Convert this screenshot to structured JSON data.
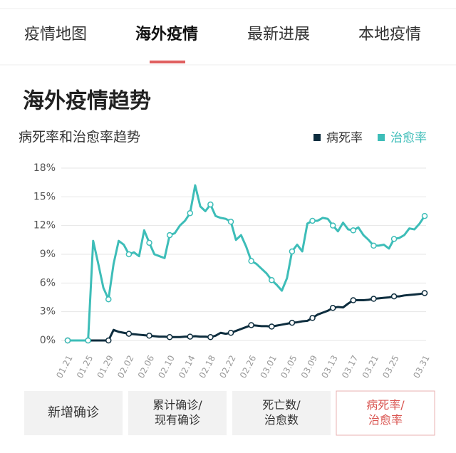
{
  "tabs": [
    "疫情地图",
    "海外疫情",
    "最新进展",
    "本地疫情"
  ],
  "heading": "海外疫情趋势",
  "chart_data": {
    "type": "line",
    "title": "病死率和治愈率趋势",
    "categories": [
      "01.21",
      null,
      null,
      null,
      "01.25",
      null,
      null,
      null,
      "01.29",
      null,
      null,
      null,
      "02.02",
      null,
      null,
      null,
      "02.06",
      null,
      null,
      null,
      "02.10",
      null,
      null,
      null,
      "02.14",
      null,
      null,
      null,
      "02.18",
      null,
      null,
      null,
      "02.22",
      null,
      null,
      null,
      "02.26",
      null,
      null,
      null,
      "03.01",
      null,
      null,
      null,
      "03.05",
      null,
      null,
      null,
      "03.09",
      null,
      null,
      null,
      "03.13",
      null,
      null,
      null,
      "03.17",
      null,
      null,
      null,
      "03.21",
      null,
      null,
      null,
      "03.25",
      null,
      null,
      null,
      null,
      null,
      "03.31"
    ],
    "series": [
      {
        "name": "病死率",
        "color": "#0d2d3e",
        "values": [
          0,
          0,
          0,
          0,
          0,
          0,
          0,
          0,
          0,
          1.1,
          0.9,
          0.8,
          0.7,
          0.65,
          0.6,
          0.55,
          0.5,
          0.45,
          0.4,
          0.4,
          0.35,
          0.35,
          0.35,
          0.4,
          0.4,
          0.45,
          0.4,
          0.4,
          0.35,
          0.5,
          0.8,
          0.7,
          0.8,
          1.0,
          1.2,
          1.4,
          1.6,
          1.55,
          1.5,
          1.5,
          1.45,
          1.55,
          1.65,
          1.75,
          1.85,
          1.9,
          2.0,
          2.05,
          2.35,
          2.7,
          2.9,
          3.1,
          3.4,
          3.5,
          3.45,
          3.85,
          4.2,
          4.2,
          4.2,
          4.25,
          4.35,
          4.4,
          4.45,
          4.5,
          4.6,
          4.6,
          4.7,
          4.75,
          4.8,
          4.85,
          4.95
        ]
      },
      {
        "name": "治愈率",
        "color": "#3dbdb8",
        "values": [
          0,
          0,
          0,
          0,
          0,
          10.4,
          8,
          5.5,
          4.3,
          8,
          10.4,
          10,
          9.0,
          9.2,
          8.8,
          11.5,
          10.2,
          9,
          8.8,
          8.6,
          11,
          11.2,
          12,
          12.5,
          13.3,
          16.2,
          14,
          13.5,
          14.2,
          13,
          12.8,
          12.7,
          12.4,
          10.5,
          11,
          9.8,
          8.3,
          8.0,
          7.5,
          7.0,
          6.3,
          5.8,
          5.2,
          6.5,
          9.3,
          10,
          9.3,
          12.2,
          12.5,
          12.5,
          12.8,
          12.7,
          12.0,
          11.4,
          12.3,
          11.6,
          11.5,
          11.8,
          11,
          10.5,
          9.9,
          9.9,
          10.0,
          9.6,
          10.6,
          10.7,
          11,
          11.7,
          11.6,
          12.2,
          13.0
        ]
      }
    ],
    "ylim": [
      0,
      18
    ],
    "yticks": [
      {
        "value": 0,
        "label": "0%"
      },
      {
        "value": 3,
        "label": "3%"
      },
      {
        "value": 6,
        "label": "6%"
      },
      {
        "value": 9,
        "label": "9%"
      },
      {
        "value": 12,
        "label": "12%"
      },
      {
        "value": 15,
        "label": "15%"
      },
      {
        "value": 18,
        "label": "18%"
      }
    ],
    "grid": true,
    "legend": "top-right"
  },
  "buttons": [
    [
      "新增确诊"
    ],
    [
      "累计确诊/",
      "现有确诊"
    ],
    [
      "死亡数/",
      "治愈数"
    ],
    [
      "病死率/",
      "治愈率"
    ]
  ]
}
